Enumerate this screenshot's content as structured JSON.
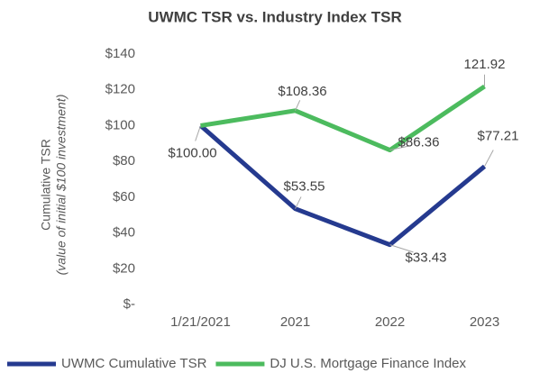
{
  "chart_data": {
    "type": "line",
    "title": "UWMC TSR vs. Industry Index TSR",
    "ylabel": [
      "Cumulative  TSR",
      "(value of initial $100 investment)"
    ],
    "categories": [
      "1/21/2021",
      "2021",
      "2022",
      "2023"
    ],
    "series": [
      {
        "name": "UWMC Cumulative TSR",
        "color": "#253a8f",
        "values": [
          100,
          53.55,
          33.43,
          77.21
        ],
        "value_labels": [
          "$100.00",
          "$53.55",
          "$33.43",
          "$77.21"
        ]
      },
      {
        "name": "DJ U.S. Mortgage Finance Index",
        "color": "#4cbb5e",
        "values": [
          100,
          108.36,
          86.36,
          121.92
        ],
        "value_labels": [
          null,
          "$108.36",
          "$86.36",
          "121.92"
        ]
      }
    ],
    "ylim": [
      0,
      140
    ],
    "yticks": [
      {
        "value": 0,
        "label": "$-"
      },
      {
        "value": 20,
        "label": "$20"
      },
      {
        "value": 40,
        "label": "$40"
      },
      {
        "value": 60,
        "label": "$60"
      },
      {
        "value": 80,
        "label": "$80"
      },
      {
        "value": 100,
        "label": "$100"
      },
      {
        "value": 120,
        "label": "$120"
      },
      {
        "value": 140,
        "label": "$140"
      }
    ],
    "grid": false,
    "legend": "bottom"
  }
}
